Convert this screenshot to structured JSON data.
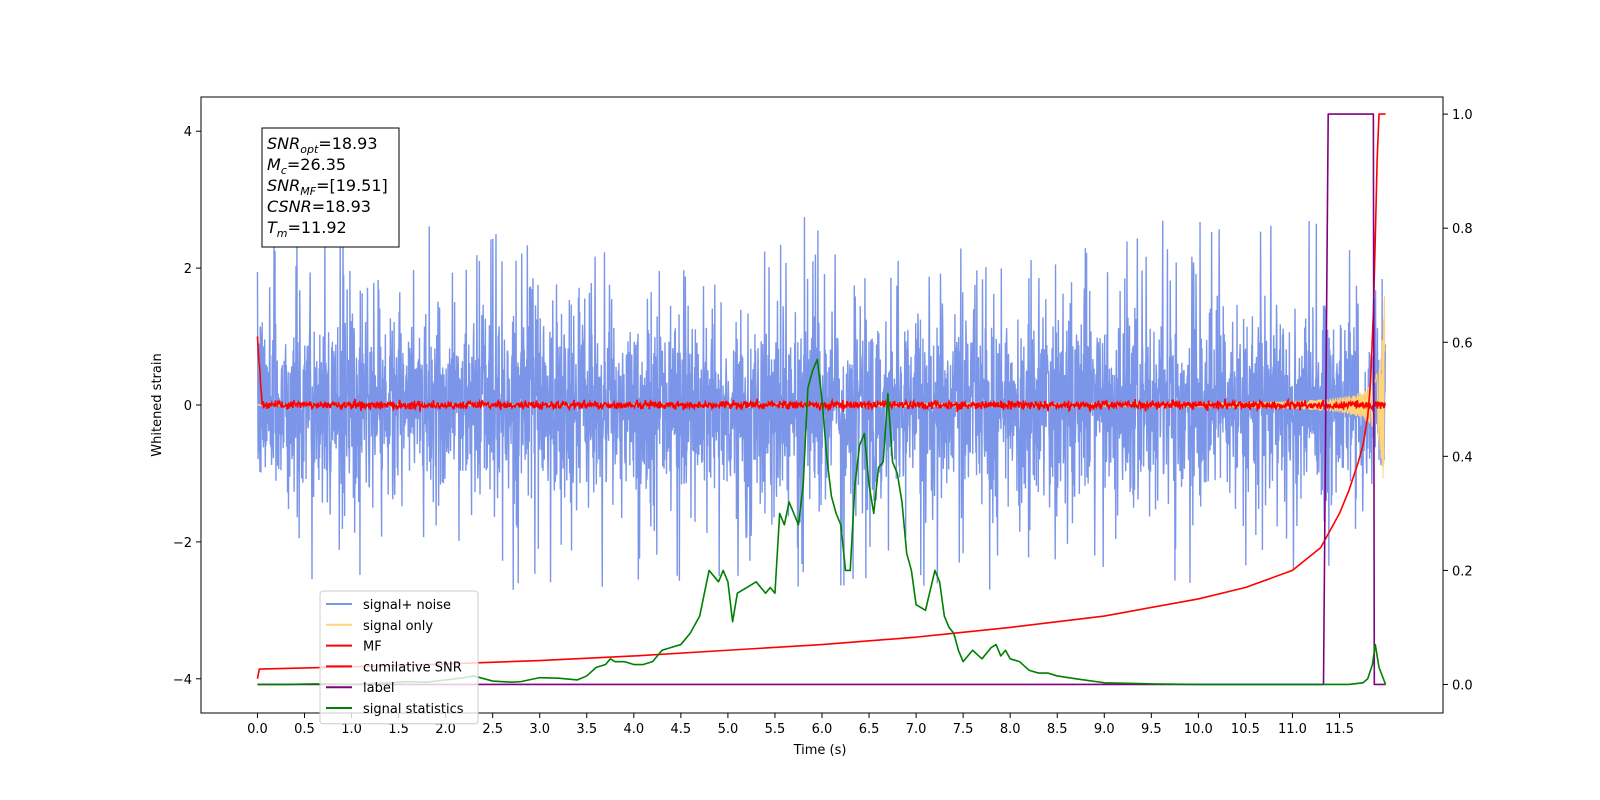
{
  "chart_data": {
    "type": "line",
    "xlabel": "Time (s)",
    "ylabel": "Whitened strain",
    "xlim": [
      -0.6,
      12.6
    ],
    "ylim": [
      -4.5,
      4.5
    ],
    "y2lim": [
      -0.05,
      1.03
    ],
    "x_ticks": [
      0.0,
      0.5,
      1.0,
      1.5,
      2.0,
      2.5,
      3.0,
      3.5,
      4.0,
      4.5,
      5.0,
      5.5,
      6.0,
      6.5,
      7.0,
      7.5,
      8.0,
      8.5,
      9.0,
      9.5,
      10.0,
      10.5,
      11.0,
      11.5
    ],
    "x_tick_labels": [
      "0.0",
      "0.5",
      "1.0",
      "1.5",
      "2.0",
      "2.5",
      "3.0",
      "3.5",
      "4.0",
      "4.5",
      "5.0",
      "5.5",
      "6.0",
      "6.5",
      "7.0",
      "7.5",
      "8.0",
      "8.5",
      "9.0",
      "9.5",
      "10.0",
      "10.5",
      "11.0",
      "11.5"
    ],
    "y_ticks": [
      -4,
      -2,
      0,
      2,
      4
    ],
    "y_tick_labels": [
      "−4",
      "−2",
      "0",
      "2",
      "4"
    ],
    "y2_ticks": [
      0.0,
      0.2,
      0.4,
      0.6,
      0.8,
      1.0
    ],
    "y2_tick_labels": [
      "0.0",
      "0.2",
      "0.4",
      "0.6",
      "0.8",
      "1.0"
    ],
    "grid": false,
    "legend_position": "lower-left",
    "annotation": {
      "lines": [
        {
          "base": "SNR",
          "sub": "opt",
          "value": "=18.93"
        },
        {
          "base": "M",
          "sub": "c",
          "value": "=26.35"
        },
        {
          "base": "SNR",
          "sub": "MF",
          "value": "=[19.51]"
        },
        {
          "base": "CSNR",
          "sub": "",
          "value": "=18.93"
        },
        {
          "base": "T",
          "sub": "m",
          "value": "=11.92"
        }
      ]
    },
    "series": [
      {
        "name": "signal+ noise",
        "color": "#7b96e8",
        "axis": "left",
        "style": "noise",
        "x_range": [
          0.0,
          11.99
        ],
        "amplitude": 1.3,
        "peak_max": 2.9,
        "peak_min": -3.65
      },
      {
        "name": "signal only",
        "color": "#ffd47a",
        "axis": "left",
        "style": "chirp",
        "x_range": [
          0.0,
          11.99
        ],
        "amp_end": 3.0
      },
      {
        "name": "MF",
        "color": "#ff0000",
        "axis": "left",
        "style": "mf",
        "x_range": [
          0.0,
          11.99
        ],
        "start_value": 1.0,
        "noise": 0.08
      },
      {
        "name": "cumilative SNR",
        "color": "#ff0000",
        "axis": "right",
        "x": [
          0.0,
          0.02,
          1.0,
          2.0,
          3.0,
          4.0,
          5.0,
          6.0,
          7.0,
          8.0,
          9.0,
          10.0,
          10.5,
          11.0,
          11.3,
          11.5,
          11.6,
          11.7,
          11.75,
          11.8,
          11.83,
          11.86,
          11.88,
          11.9,
          11.92,
          11.99
        ],
        "y": [
          0.01,
          0.027,
          0.031,
          0.036,
          0.042,
          0.05,
          0.06,
          0.07,
          0.083,
          0.1,
          0.12,
          0.15,
          0.17,
          0.2,
          0.24,
          0.3,
          0.34,
          0.39,
          0.42,
          0.47,
          0.53,
          0.65,
          0.78,
          0.92,
          1.0,
          1.0
        ]
      },
      {
        "name": "label",
        "color": "#800080",
        "axis": "right",
        "x": [
          0.0,
          11.33,
          11.38,
          11.86,
          11.87,
          11.99
        ],
        "y": [
          0.0,
          0.0,
          1.0,
          1.0,
          0.0,
          0.0
        ]
      },
      {
        "name": "signal statistics",
        "color": "#008000",
        "axis": "right",
        "x": [
          0.0,
          0.3,
          0.6,
          1.0,
          1.4,
          1.6,
          1.8,
          2.0,
          2.1,
          2.2,
          2.3,
          2.5,
          2.7,
          2.8,
          3.0,
          3.2,
          3.4,
          3.5,
          3.6,
          3.7,
          3.75,
          3.8,
          3.9,
          4.0,
          4.1,
          4.2,
          4.3,
          4.4,
          4.5,
          4.6,
          4.7,
          4.75,
          4.8,
          4.9,
          4.95,
          5.0,
          5.05,
          5.1,
          5.2,
          5.3,
          5.4,
          5.45,
          5.5,
          5.55,
          5.6,
          5.65,
          5.7,
          5.75,
          5.8,
          5.85,
          5.9,
          5.95,
          6.0,
          6.05,
          6.1,
          6.15,
          6.2,
          6.25,
          6.3,
          6.35,
          6.4,
          6.45,
          6.5,
          6.55,
          6.6,
          6.65,
          6.7,
          6.75,
          6.8,
          6.85,
          6.9,
          6.95,
          7.0,
          7.1,
          7.2,
          7.25,
          7.3,
          7.35,
          7.4,
          7.45,
          7.5,
          7.55,
          7.6,
          7.7,
          7.8,
          7.85,
          7.9,
          7.95,
          8.0,
          8.1,
          8.2,
          8.3,
          8.4,
          8.5,
          8.7,
          9.0,
          9.5,
          10.0,
          11.0,
          11.6,
          11.75,
          11.8,
          11.85,
          11.88,
          11.92,
          11.99
        ],
        "y": [
          0.0,
          0.0,
          0.001,
          0.0,
          0.003,
          0.005,
          0.004,
          0.008,
          0.01,
          0.012,
          0.015,
          0.006,
          0.004,
          0.005,
          0.012,
          0.011,
          0.008,
          0.015,
          0.03,
          0.035,
          0.045,
          0.04,
          0.04,
          0.035,
          0.035,
          0.04,
          0.06,
          0.065,
          0.07,
          0.09,
          0.12,
          0.16,
          0.2,
          0.18,
          0.2,
          0.18,
          0.11,
          0.16,
          0.17,
          0.18,
          0.16,
          0.17,
          0.16,
          0.3,
          0.28,
          0.32,
          0.3,
          0.28,
          0.35,
          0.52,
          0.55,
          0.57,
          0.5,
          0.4,
          0.33,
          0.3,
          0.28,
          0.2,
          0.2,
          0.35,
          0.42,
          0.44,
          0.35,
          0.3,
          0.38,
          0.39,
          0.51,
          0.39,
          0.37,
          0.32,
          0.23,
          0.2,
          0.14,
          0.13,
          0.2,
          0.18,
          0.12,
          0.1,
          0.09,
          0.06,
          0.04,
          0.05,
          0.06,
          0.045,
          0.065,
          0.07,
          0.05,
          0.06,
          0.045,
          0.04,
          0.025,
          0.02,
          0.02,
          0.015,
          0.01,
          0.003,
          0.001,
          0.0,
          0.0,
          0.0,
          0.003,
          0.01,
          0.035,
          0.07,
          0.03,
          0.0
        ]
      }
    ]
  }
}
